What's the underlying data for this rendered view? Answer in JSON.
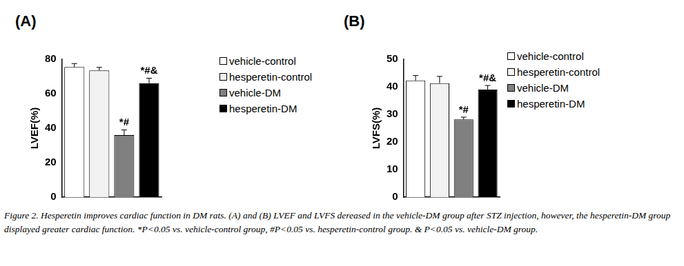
{
  "caption": "Figure 2. Hesperetin improves cardiac function in DM rats. (A) and (B) LVEF and LVFS dereased in the vehicle-DM group after STZ injection, however, the hesperetin-DM group displayed greater cardiac function. *P<0.05 vs. vehicle-control group, #P<0.05 vs. hesperetin-control group. & P<0.05 vs. vehicle-DM group.",
  "chart_data": [
    {
      "type": "bar",
      "panel": "(A)",
      "y_label": "LVEF(%)",
      "categories": [
        "vehicle-control",
        "hesperetin-control",
        "vehicle-DM",
        "hesperetin-DM"
      ],
      "values": [
        75.5,
        73.5,
        36,
        66
      ],
      "errors": [
        2,
        1.8,
        3,
        3
      ],
      "annotations": [
        null,
        null,
        "*#",
        "*#&"
      ],
      "colors": [
        "#ffffff",
        "#f2f2f2",
        "#808080",
        "#000000"
      ],
      "ylim": [
        0,
        80
      ],
      "yticks": [
        0,
        20,
        40,
        60,
        80
      ],
      "grid": false,
      "legend": "right",
      "tick_labels": "y"
    },
    {
      "type": "bar",
      "panel": "(B)",
      "y_label": "LVFS(%)",
      "categories": [
        "vehicle-control",
        "hesperetin-control",
        "vehicle-DM",
        "hesperetin-DM"
      ],
      "values": [
        42.3,
        41.3,
        28.2,
        39
      ],
      "errors": [
        1.8,
        2.5,
        0.8,
        1.5
      ],
      "annotations": [
        null,
        null,
        "*#",
        "*#&"
      ],
      "colors": [
        "#ffffff",
        "#f2f2f2",
        "#808080",
        "#000000"
      ],
      "ylim": [
        0,
        50
      ],
      "yticks": [
        0,
        10,
        20,
        30,
        40,
        50
      ],
      "grid": false,
      "legend": "right",
      "tick_labels": "y"
    }
  ]
}
